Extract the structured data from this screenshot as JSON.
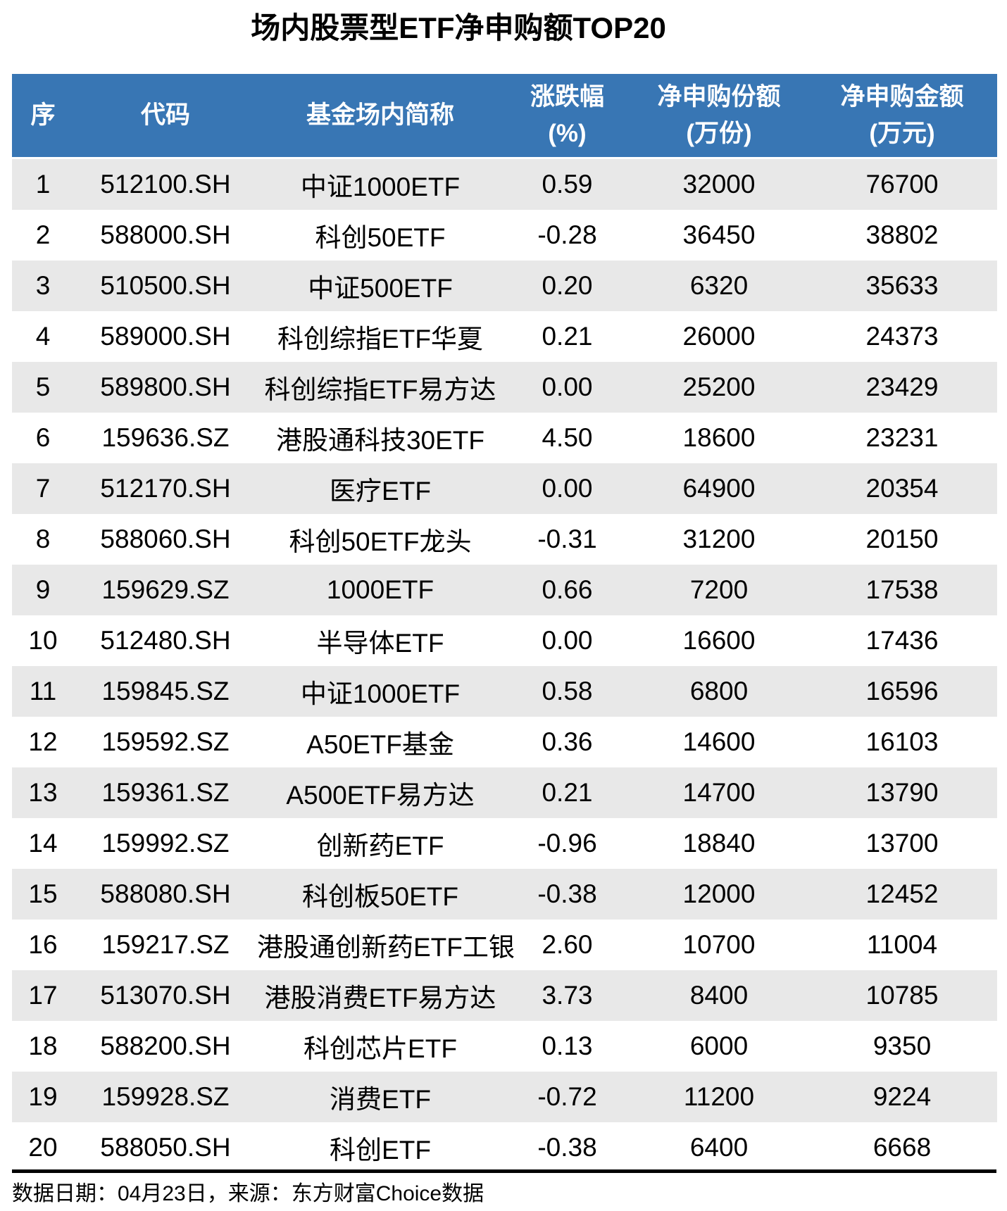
{
  "title": "场内股票型ETF净申购额TOP20",
  "table": {
    "columns": [
      {
        "line1": "序",
        "line2": ""
      },
      {
        "line1": "代码",
        "line2": ""
      },
      {
        "line1": "基金场内简称",
        "line2": ""
      },
      {
        "line1": "涨跌幅",
        "line2": "(%)"
      },
      {
        "line1": "净申购份额",
        "line2": "(万份)"
      },
      {
        "line1": "净申购金额",
        "line2": "(万元)"
      }
    ]
  },
  "chart_data": {
    "type": "table",
    "title": "场内股票型ETF净申购额TOP20",
    "columns": [
      "序",
      "代码",
      "基金场内简称",
      "涨跌幅(%)",
      "净申购份额(万份)",
      "净申购金额(万元)"
    ],
    "rows": [
      [
        "1",
        "512100.SH",
        "中证1000ETF",
        "0.59",
        "32000",
        "76700"
      ],
      [
        "2",
        "588000.SH",
        "科创50ETF",
        "-0.28",
        "36450",
        "38802"
      ],
      [
        "3",
        "510500.SH",
        "中证500ETF",
        "0.20",
        "6320",
        "35633"
      ],
      [
        "4",
        "589000.SH",
        "科创综指ETF华夏",
        "0.21",
        "26000",
        "24373"
      ],
      [
        "5",
        "589800.SH",
        "科创综指ETF易方达",
        "0.00",
        "25200",
        "23429"
      ],
      [
        "6",
        "159636.SZ",
        "港股通科技30ETF",
        "4.50",
        "18600",
        "23231"
      ],
      [
        "7",
        "512170.SH",
        "医疗ETF",
        "0.00",
        "64900",
        "20354"
      ],
      [
        "8",
        "588060.SH",
        "科创50ETF龙头",
        "-0.31",
        "31200",
        "20150"
      ],
      [
        "9",
        "159629.SZ",
        "1000ETF",
        "0.66",
        "7200",
        "17538"
      ],
      [
        "10",
        "512480.SH",
        "半导体ETF",
        "0.00",
        "16600",
        "17436"
      ],
      [
        "11",
        "159845.SZ",
        "中证1000ETF",
        "0.58",
        "6800",
        "16596"
      ],
      [
        "12",
        "159592.SZ",
        "A50ETF基金",
        "0.36",
        "14600",
        "16103"
      ],
      [
        "13",
        "159361.SZ",
        "A500ETF易方达",
        "0.21",
        "14700",
        "13790"
      ],
      [
        "14",
        "159992.SZ",
        "创新药ETF",
        "-0.96",
        "18840",
        "13700"
      ],
      [
        "15",
        "588080.SH",
        "科创板50ETF",
        "-0.38",
        "12000",
        "12452"
      ],
      [
        "16",
        "159217.SZ",
        "港股通创新药ETF工银",
        "2.60",
        "10700",
        "11004"
      ],
      [
        "17",
        "513070.SH",
        "港股消费ETF易方达",
        "3.73",
        "8400",
        "10785"
      ],
      [
        "18",
        "588200.SH",
        "科创芯片ETF",
        "0.13",
        "6000",
        "9350"
      ],
      [
        "19",
        "159928.SZ",
        "消费ETF",
        "-0.72",
        "11200",
        "9224"
      ],
      [
        "20",
        "588050.SH",
        "科创ETF",
        "-0.38",
        "6400",
        "6668"
      ]
    ],
    "source_note": "数据日期：04月23日，来源：东方财富Choice数据"
  },
  "footer": {
    "note": "数据日期：04月23日，来源：东方财富Choice数据"
  },
  "colors": {
    "header_bg": "#3876B4",
    "header_text": "#FFFFFF",
    "row_alt_bg": "#E8E8E8",
    "row_bg": "#FFFFFF",
    "divider": "#000000",
    "text": "#000000"
  }
}
